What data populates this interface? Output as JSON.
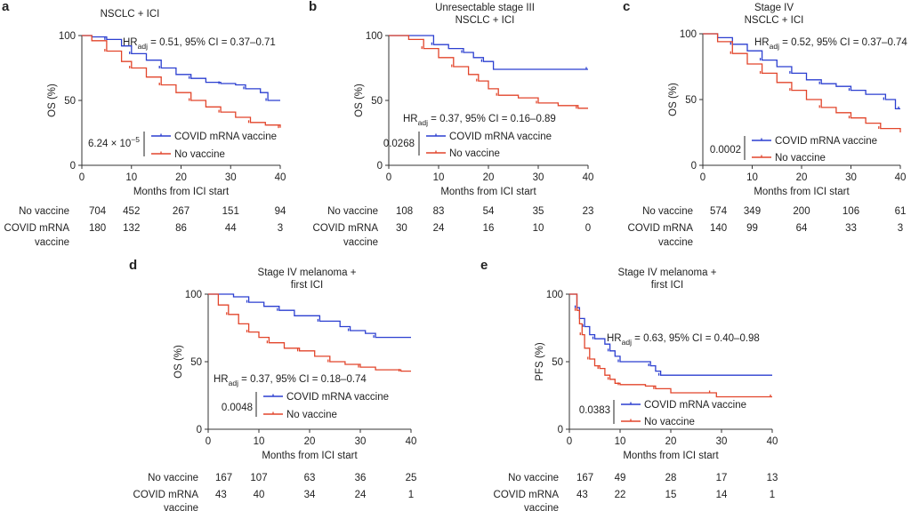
{
  "colors": {
    "vaccine": "#2b3fd0",
    "no_vaccine": "#e2452b"
  },
  "chart_data": [
    {
      "type": "line",
      "letter": "a",
      "title": [
        "NSCLC + ICI"
      ],
      "xlabel": "Months from ICI start",
      "ylabel": "OS (%)",
      "xlim": [
        0,
        40
      ],
      "ylim": [
        0,
        100
      ],
      "xticks": [
        "0",
        "10",
        "20",
        "30",
        "40"
      ],
      "yticks": [
        "0",
        "50",
        "100"
      ],
      "hr": {
        "pre": "HR",
        "sub": "adj",
        "post": " = 0.51, 95% CI = 0.37–0.71"
      },
      "p_value": {
        "base": "6.24 × 10",
        "exp": "−5"
      },
      "legend": [
        "COVID mRNA vaccine",
        "No vaccine"
      ],
      "series": [
        {
          "name": "COVID mRNA vaccine",
          "color": "#2b3fd0",
          "points": [
            [
              0,
              100
            ],
            [
              2,
              99
            ],
            [
              5,
              97
            ],
            [
              8,
              92
            ],
            [
              10,
              86
            ],
            [
              13,
              81
            ],
            [
              16,
              75
            ],
            [
              19,
              70
            ],
            [
              22,
              67
            ],
            [
              25,
              64
            ],
            [
              28,
              63
            ],
            [
              31,
              62
            ],
            [
              33,
              59
            ],
            [
              36,
              56
            ],
            [
              37.5,
              50
            ],
            [
              40,
              50
            ]
          ]
        },
        {
          "name": "No vaccine",
          "color": "#e2452b",
          "points": [
            [
              0,
              100
            ],
            [
              2,
              96
            ],
            [
              5,
              88
            ],
            [
              8,
              80
            ],
            [
              10,
              75
            ],
            [
              13,
              68
            ],
            [
              16,
              62
            ],
            [
              19,
              56
            ],
            [
              22,
              50
            ],
            [
              25,
              45
            ],
            [
              28,
              41
            ],
            [
              31,
              37
            ],
            [
              34,
              33
            ],
            [
              37,
              31
            ],
            [
              40,
              29
            ]
          ]
        }
      ],
      "risk_table": {
        "labels": [
          "No vaccine",
          "COVID mRNA",
          "vaccine"
        ],
        "no_vaccine": [
          "704",
          "452",
          "267",
          "151",
          "94"
        ],
        "vaccine": [
          "180",
          "132",
          "86",
          "44",
          "3"
        ]
      }
    },
    {
      "type": "line",
      "letter": "b",
      "title": [
        "Unresectable stage III",
        "NSCLC + ICI"
      ],
      "xlabel": "Months from ICI start",
      "ylabel": "OS (%)",
      "xlim": [
        0,
        40
      ],
      "ylim": [
        0,
        100
      ],
      "xticks": [
        "0",
        "10",
        "20",
        "30",
        "40"
      ],
      "yticks": [
        "0",
        "50",
        "100"
      ],
      "hr": {
        "pre": "HR",
        "sub": "adj",
        "post": " = 0.37, 95% CI = 0.16–0.89"
      },
      "p_value": {
        "base": "0.0268",
        "exp": ""
      },
      "legend": [
        "COVID mRNA vaccine",
        "No vaccine"
      ],
      "series": [
        {
          "name": "COVID mRNA vaccine",
          "color": "#2b3fd0",
          "points": [
            [
              0,
              100
            ],
            [
              8,
              100
            ],
            [
              9,
              93
            ],
            [
              12,
              90
            ],
            [
              15,
              87
            ],
            [
              17,
              83
            ],
            [
              19,
              80
            ],
            [
              21,
              74
            ],
            [
              40,
              74
            ]
          ]
        },
        {
          "name": "No vaccine",
          "color": "#e2452b",
          "points": [
            [
              0,
              100
            ],
            [
              4,
              97
            ],
            [
              7,
              90
            ],
            [
              10,
              83
            ],
            [
              13,
              76
            ],
            [
              16,
              70
            ],
            [
              18,
              65
            ],
            [
              20,
              59
            ],
            [
              22,
              54
            ],
            [
              26,
              52
            ],
            [
              30,
              48
            ],
            [
              34,
              46
            ],
            [
              38,
              44
            ],
            [
              40,
              44
            ]
          ]
        }
      ],
      "risk_table": {
        "labels": [
          "No vaccine",
          "COVID mRNA",
          "vaccine"
        ],
        "no_vaccine": [
          "108",
          "83",
          "54",
          "35",
          "23"
        ],
        "vaccine": [
          "30",
          "24",
          "16",
          "10",
          "0"
        ]
      }
    },
    {
      "type": "line",
      "letter": "c",
      "title": [
        "Stage IV",
        "NSCLC + ICI"
      ],
      "xlabel": "Months from ICI start",
      "ylabel": "OS (%)",
      "xlim": [
        0,
        40
      ],
      "ylim": [
        0,
        100
      ],
      "xticks": [
        "0",
        "10",
        "20",
        "30",
        "40"
      ],
      "yticks": [
        "0",
        "50",
        "100"
      ],
      "hr": {
        "pre": "HR",
        "sub": "adj",
        "post": " = 0.52, 95% CI = 0.37–0.74"
      },
      "p_value": {
        "base": "0.0002",
        "exp": ""
      },
      "legend": [
        "COVID mRNA vaccine",
        "No vaccine"
      ],
      "series": [
        {
          "name": "COVID mRNA vaccine",
          "color": "#2b3fd0",
          "points": [
            [
              0,
              100
            ],
            [
              3,
              97
            ],
            [
              6,
              92
            ],
            [
              9,
              87
            ],
            [
              12,
              80
            ],
            [
              15,
              75
            ],
            [
              18,
              70
            ],
            [
              21,
              65
            ],
            [
              24,
              62
            ],
            [
              27,
              60
            ],
            [
              30,
              57
            ],
            [
              33,
              54
            ],
            [
              37,
              50
            ],
            [
              39,
              43
            ],
            [
              40,
              43
            ]
          ]
        },
        {
          "name": "No vaccine",
          "color": "#e2452b",
          "points": [
            [
              0,
              100
            ],
            [
              3,
              94
            ],
            [
              6,
              85
            ],
            [
              9,
              77
            ],
            [
              12,
              70
            ],
            [
              15,
              63
            ],
            [
              18,
              57
            ],
            [
              21,
              50
            ],
            [
              24,
              44
            ],
            [
              27,
              40
            ],
            [
              30,
              36
            ],
            [
              33,
              32
            ],
            [
              36,
              28
            ],
            [
              40,
              25
            ]
          ]
        }
      ],
      "risk_table": {
        "labels": [
          "No vaccine",
          "COVID mRNA",
          "vaccine"
        ],
        "no_vaccine": [
          "574",
          "349",
          "200",
          "106",
          "61"
        ],
        "vaccine": [
          "140",
          "99",
          "64",
          "33",
          "3"
        ]
      }
    },
    {
      "type": "line",
      "letter": "d",
      "title": [
        "Stage IV melanoma +",
        "first ICI"
      ],
      "xlabel": "Months from ICI start",
      "ylabel": "OS (%)",
      "xlim": [
        0,
        40
      ],
      "ylim": [
        0,
        100
      ],
      "xticks": [
        "0",
        "10",
        "20",
        "30",
        "40"
      ],
      "yticks": [
        "0",
        "50",
        "100"
      ],
      "hr": {
        "pre": "HR",
        "sub": "adj",
        "post": " = 0.37, 95% CI = 0.18–0.74"
      },
      "p_value": {
        "base": "0.0048",
        "exp": ""
      },
      "legend": [
        "COVID mRNA vaccine",
        "No vaccine"
      ],
      "series": [
        {
          "name": "COVID mRNA vaccine",
          "color": "#2b3fd0",
          "points": [
            [
              0,
              100
            ],
            [
              5,
              98
            ],
            [
              8,
              94
            ],
            [
              11,
              91
            ],
            [
              14,
              88
            ],
            [
              17,
              84
            ],
            [
              22,
              80
            ],
            [
              26,
              76
            ],
            [
              28,
              73
            ],
            [
              31,
              71
            ],
            [
              33,
              68
            ],
            [
              40,
              68
            ]
          ]
        },
        {
          "name": "No vaccine",
          "color": "#e2452b",
          "points": [
            [
              0,
              100
            ],
            [
              2,
              92
            ],
            [
              4,
              85
            ],
            [
              6,
              78
            ],
            [
              8,
              72
            ],
            [
              10,
              68
            ],
            [
              12,
              64
            ],
            [
              15,
              60
            ],
            [
              18,
              58
            ],
            [
              21,
              54
            ],
            [
              24,
              50
            ],
            [
              27,
              48
            ],
            [
              30,
              46
            ],
            [
              33,
              44
            ],
            [
              38,
              43
            ],
            [
              40,
              43
            ]
          ]
        }
      ],
      "risk_table": {
        "labels": [
          "No vaccine",
          "COVID mRNA",
          "vaccine"
        ],
        "no_vaccine": [
          "167",
          "107",
          "63",
          "36",
          "25"
        ],
        "vaccine": [
          "43",
          "40",
          "34",
          "24",
          "1"
        ]
      }
    },
    {
      "type": "line",
      "letter": "e",
      "title": [
        "Stage IV melanoma +",
        "first ICI"
      ],
      "xlabel": "Months from ICI start",
      "ylabel": "PFS (%)",
      "xlim": [
        0,
        40
      ],
      "ylim": [
        0,
        100
      ],
      "xticks": [
        "0",
        "10",
        "20",
        "30",
        "40"
      ],
      "yticks": [
        "0",
        "50",
        "100"
      ],
      "hr": {
        "pre": "HR",
        "sub": "adj",
        "post": " = 0.63, 95% CI = 0.40–0.98"
      },
      "p_value": {
        "base": "0.0383",
        "exp": ""
      },
      "legend": [
        "COVID mRNA vaccine",
        "No vaccine"
      ],
      "series": [
        {
          "name": "COVID mRNA vaccine",
          "color": "#2b3fd0",
          "points": [
            [
              0,
              100
            ],
            [
              1,
              100
            ],
            [
              1.5,
              90
            ],
            [
              2,
              82
            ],
            [
              3,
              76
            ],
            [
              4,
              70
            ],
            [
              5,
              67
            ],
            [
              7,
              63
            ],
            [
              8,
              58
            ],
            [
              9,
              54
            ],
            [
              10,
              50
            ],
            [
              13,
              50
            ],
            [
              16,
              47
            ],
            [
              17,
              43
            ],
            [
              18,
              40
            ],
            [
              40,
              40
            ]
          ]
        },
        {
          "name": "No vaccine",
          "color": "#e2452b",
          "points": [
            [
              0,
              100
            ],
            [
              1,
              100
            ],
            [
              1.5,
              88
            ],
            [
              2,
              78
            ],
            [
              2.5,
              70
            ],
            [
              3,
              60
            ],
            [
              4,
              52
            ],
            [
              5,
              47
            ],
            [
              6,
              45
            ],
            [
              7,
              40
            ],
            [
              8,
              37
            ],
            [
              9,
              34
            ],
            [
              10,
              33
            ],
            [
              15,
              32
            ],
            [
              17,
              30
            ],
            [
              20,
              27
            ],
            [
              28,
              27
            ],
            [
              29,
              24
            ],
            [
              40,
              24
            ]
          ]
        }
      ],
      "risk_table": {
        "labels": [
          "No vaccine",
          "COVID mRNA",
          "vaccine"
        ],
        "no_vaccine": [
          "167",
          "49",
          "28",
          "17",
          "13"
        ],
        "vaccine": [
          "43",
          "22",
          "15",
          "14",
          "1"
        ]
      }
    }
  ]
}
